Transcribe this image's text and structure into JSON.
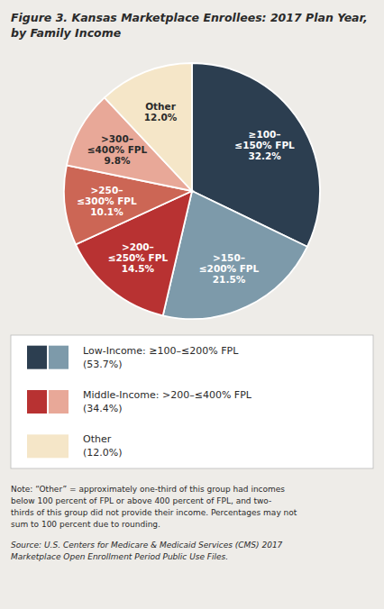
{
  "chart_data": {
    "type": "pie",
    "title": "Figure 3. Kansas Marketplace Enrollees: 2017 Plan Year,\nby Family Income",
    "categories": [
      "≥100–\n≤150% FPL",
      ">150–\n≤200% FPL",
      ">200–\n≤250% FPL",
      ">250–\n≤300% FPL",
      ">300–\n≤400% FPL",
      "Other"
    ],
    "values": [
      32.2,
      21.5,
      14.5,
      10.1,
      9.8,
      12.0
    ],
    "value_labels": [
      "32.2%",
      "21.5%",
      "14.5%",
      "10.1%",
      "9.8%",
      "12.0%"
    ],
    "data_labels": true,
    "colors": [
      "#2c3e50",
      "#7d9aaa",
      "#b83232",
      "#cc6655",
      "#e8a898",
      "#f5e6c8"
    ],
    "legend_items": [
      {
        "label": "Low-Income: ≥100–≤200% FPL",
        "sublabel": "(53.7%)",
        "colors": [
          "#2c3e50",
          "#7d9aaa"
        ]
      },
      {
        "label": "Middle-Income: >200–≤400% FPL",
        "sublabel": "(34.4%)",
        "colors": [
          "#b83232",
          "#e8a898"
        ]
      },
      {
        "label": "Other",
        "sublabel": "(12.0%)",
        "colors": [
          "#f5e6c8"
        ]
      }
    ],
    "note": "Note: “Other” = approximately one-third of this group had incomes\nbelow 100 percent of FPL or above 400 percent of FPL, and two-\nthirds of this group did not provide their income. Percentages may not\nsum to 100 percent due to rounding.",
    "source": "Source: U.S. Centers for Medicare & Medicaid Services (CMS) 2017\nMarketplace Open Enrollment Period Public Use Files."
  }
}
